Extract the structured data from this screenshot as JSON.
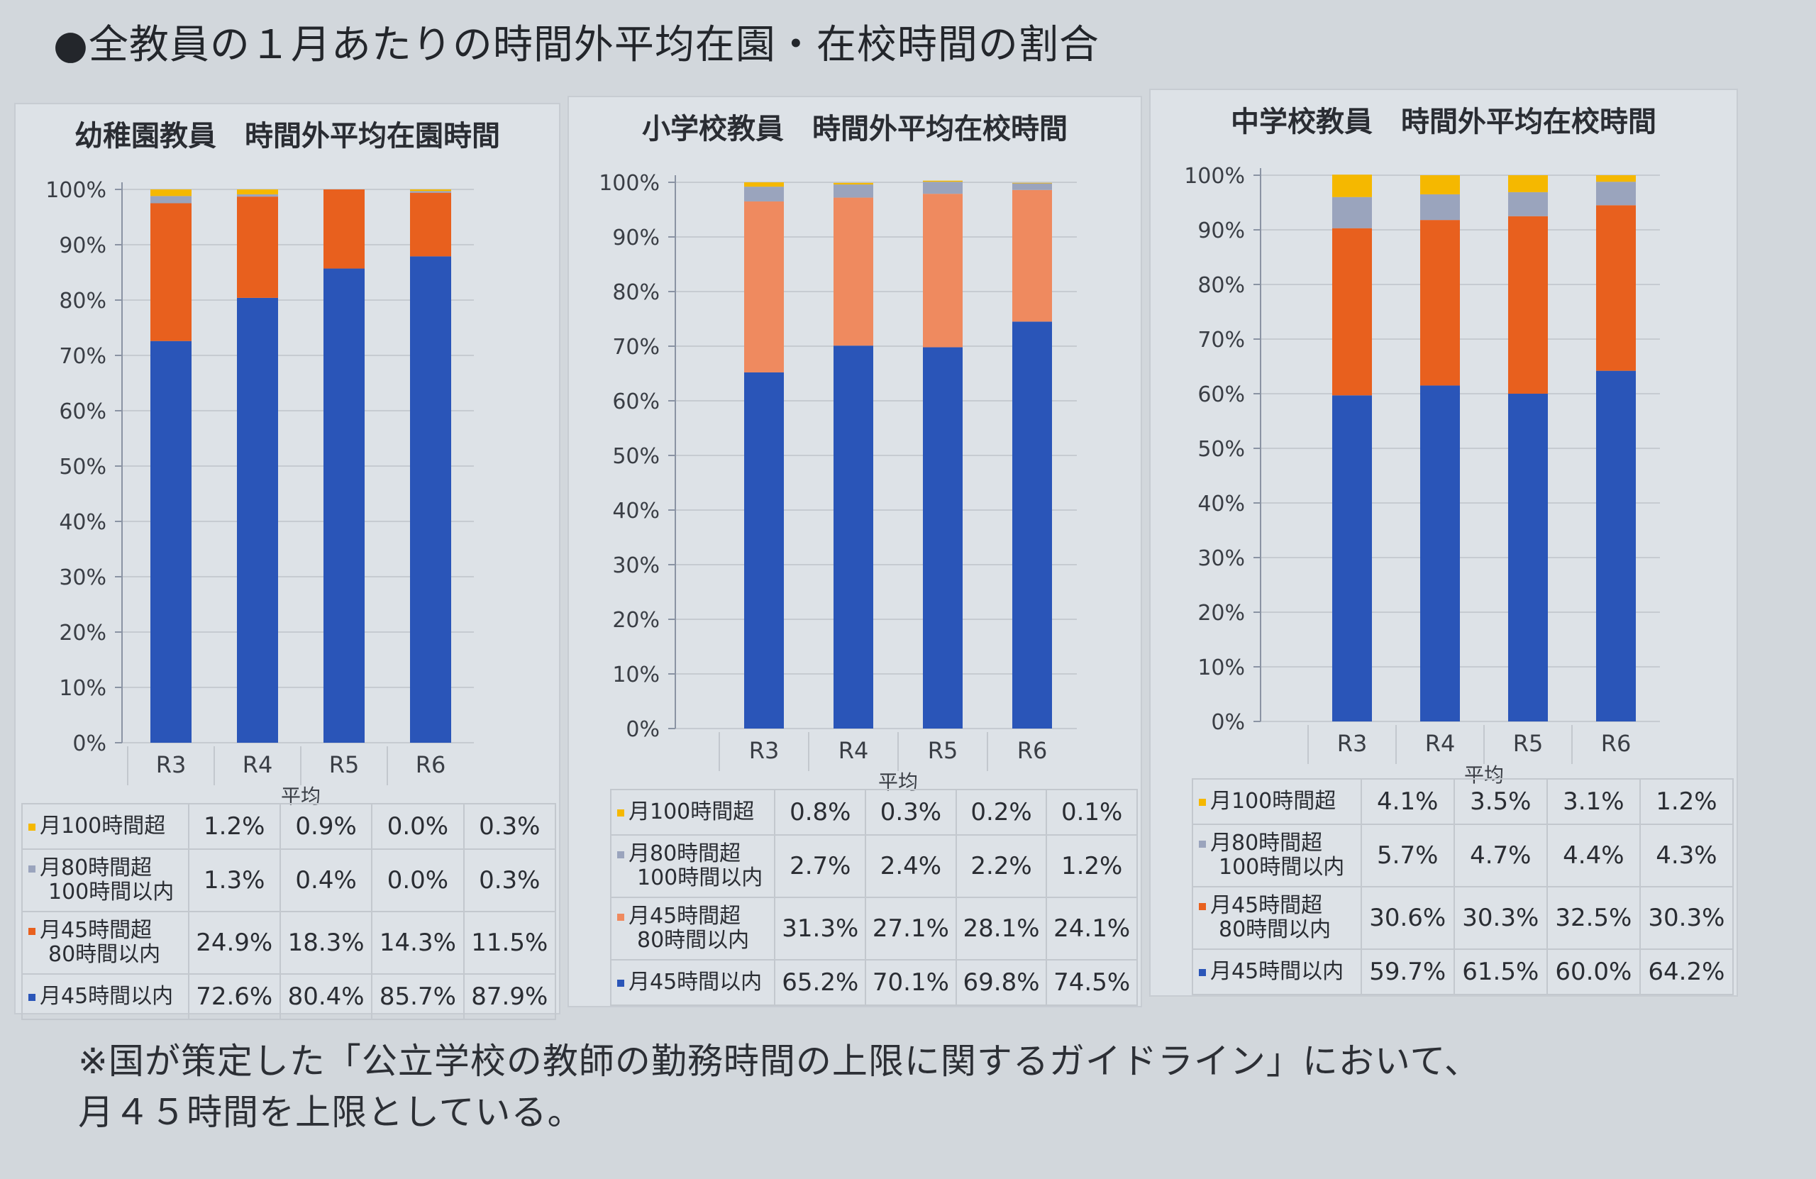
{
  "page_title": "●全教員の１月あたりの時間外平均在園・在校時間の割合",
  "footnote": {
    "line1": "※国が策定した「公立学校の教師の勤務時間の上限に関するガイドライン」において、",
    "line2": "月４５時間を上限としている。"
  },
  "colors": {
    "m100": "#f5b800",
    "m80": "#9aa4bd",
    "m45": "#e8601e",
    "m45_light": "#ef8a5f",
    "under45": "#2a55b8"
  },
  "legend_labels": {
    "m100": [
      "月100時間超"
    ],
    "m80": [
      "月80時間超",
      "100時間以内"
    ],
    "m45": [
      "月45時間超",
      "80時間以内"
    ],
    "under45": [
      "月45時間以内"
    ]
  },
  "chart_data": [
    {
      "type": "bar",
      "stacked": true,
      "title": "幼稚園教員　時間外平均在園時間",
      "xlabel": "平均",
      "categories": [
        "R3",
        "R4",
        "R5",
        "R6"
      ],
      "ylim": [
        0,
        100
      ],
      "yticks": [
        "0%",
        "10%",
        "20%",
        "30%",
        "40%",
        "50%",
        "60%",
        "70%",
        "80%",
        "90%",
        "100%"
      ],
      "grid": true,
      "series": [
        {
          "name": "月45時間以内",
          "key": "under45",
          "values": [
            72.6,
            80.4,
            85.7,
            87.9
          ],
          "labels": [
            "72.6%",
            "80.4%",
            "85.7%",
            "87.9%"
          ]
        },
        {
          "name": "月45時間超 80時間以内",
          "key": "m45",
          "values": [
            24.9,
            18.3,
            14.3,
            11.5
          ],
          "labels": [
            "24.9%",
            "18.3%",
            "14.3%",
            "11.5%"
          ]
        },
        {
          "name": "月80時間超 100時間以内",
          "key": "m80",
          "values": [
            1.3,
            0.4,
            0.0,
            0.3
          ],
          "labels": [
            "1.3%",
            "0.4%",
            "0.0%",
            "0.3%"
          ]
        },
        {
          "name": "月100時間超",
          "key": "m100",
          "values": [
            1.2,
            0.9,
            0.0,
            0.3
          ],
          "labels": [
            "1.2%",
            "0.9%",
            "0.0%",
            "0.3%"
          ]
        }
      ]
    },
    {
      "type": "bar",
      "stacked": true,
      "title": "小学校教員　時間外平均在校時間",
      "xlabel": "平均",
      "categories": [
        "R3",
        "R4",
        "R5",
        "R6"
      ],
      "ylim": [
        0,
        100
      ],
      "yticks": [
        "0%",
        "10%",
        "20%",
        "30%",
        "40%",
        "50%",
        "60%",
        "70%",
        "80%",
        "90%",
        "100%"
      ],
      "grid": true,
      "series": [
        {
          "name": "月45時間以内",
          "key": "under45",
          "values": [
            65.2,
            70.1,
            69.8,
            74.5
          ],
          "labels": [
            "65.2%",
            "70.1%",
            "69.8%",
            "74.5%"
          ]
        },
        {
          "name": "月45時間超 80時間以内",
          "key": "m45_light",
          "values": [
            31.3,
            27.1,
            28.1,
            24.1
          ],
          "labels": [
            "31.3%",
            "27.1%",
            "28.1%",
            "24.1%"
          ]
        },
        {
          "name": "月80時間超 100時間以内",
          "key": "m80",
          "values": [
            2.7,
            2.4,
            2.2,
            1.2
          ],
          "labels": [
            "2.7%",
            "2.4%",
            "2.2%",
            "1.2%"
          ]
        },
        {
          "name": "月100時間超",
          "key": "m100",
          "values": [
            0.8,
            0.3,
            0.2,
            0.1
          ],
          "labels": [
            "0.8%",
            "0.3%",
            "0.2%",
            "0.1%"
          ]
        }
      ]
    },
    {
      "type": "bar",
      "stacked": true,
      "title": "中学校教員　時間外平均在校時間",
      "xlabel": "平均",
      "categories": [
        "R3",
        "R4",
        "R5",
        "R6"
      ],
      "ylim": [
        0,
        100
      ],
      "yticks": [
        "0%",
        "10%",
        "20%",
        "30%",
        "40%",
        "50%",
        "60%",
        "70%",
        "80%",
        "90%",
        "100%"
      ],
      "grid": true,
      "series": [
        {
          "name": "月45時間以内",
          "key": "under45",
          "values": [
            59.7,
            61.5,
            60.0,
            64.2
          ],
          "labels": [
            "59.7%",
            "61.5%",
            "60.0%",
            "64.2%"
          ]
        },
        {
          "name": "月45時間超 80時間以内",
          "key": "m45",
          "values": [
            30.6,
            30.3,
            32.5,
            30.3
          ],
          "labels": [
            "30.6%",
            "30.3%",
            "32.5%",
            "30.3%"
          ]
        },
        {
          "name": "月80時間超 100時間以内",
          "key": "m80",
          "values": [
            5.7,
            4.7,
            4.4,
            4.3
          ],
          "labels": [
            "5.7%",
            "4.7%",
            "4.4%",
            "4.3%"
          ]
        },
        {
          "name": "月100時間超",
          "key": "m100",
          "values": [
            4.1,
            3.5,
            3.1,
            1.2
          ],
          "labels": [
            "4.1%",
            "3.5%",
            "3.1%",
            "1.2%"
          ]
        }
      ]
    }
  ]
}
